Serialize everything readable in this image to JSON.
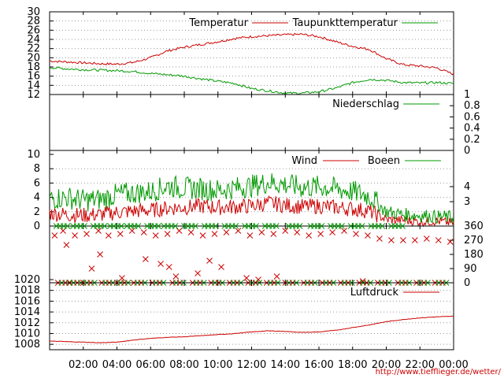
{
  "colors": {
    "temperature": "#cc0000",
    "dewpoint": "#009900",
    "precipitation": "#009900",
    "wind": "#cc0000",
    "gusts": "#009900",
    "direction_wind": "#cc0000",
    "direction_gusts": "#009900",
    "pressure": "#cc0000",
    "url": "#cc0000",
    "grid": "#999999"
  },
  "x_axis": {
    "ticks": [
      "02:00",
      "04:00",
      "06:00",
      "08:00",
      "10:00",
      "12:00",
      "14:00",
      "16:00",
      "18:00",
      "20:00",
      "22:00",
      "00:00"
    ],
    "tick_hours": [
      2,
      4,
      6,
      8,
      10,
      12,
      14,
      16,
      18,
      20,
      22,
      24
    ],
    "range_hours": [
      0,
      24
    ]
  },
  "footer_url": "http://www.tiefflieger.de/wetter/",
  "chart_data": [
    {
      "id": "temperature",
      "type": "line",
      "ylim": [
        12,
        30
      ],
      "yticks": [
        "12",
        "14",
        "16",
        "18",
        "20",
        "22",
        "24",
        "26",
        "28",
        "30"
      ],
      "ytick_values": [
        12,
        14,
        16,
        18,
        20,
        22,
        24,
        26,
        28,
        30
      ],
      "grid": true,
      "legend_position": "top-right",
      "series": [
        {
          "name": "Temperatur",
          "x": [
            0,
            1,
            2,
            3,
            4,
            5,
            6,
            7,
            8,
            9,
            10,
            11,
            12,
            13,
            14,
            15,
            16,
            17,
            18,
            19,
            20,
            21,
            22,
            23,
            24
          ],
          "values": [
            19.3,
            19.1,
            18.9,
            18.7,
            18.6,
            19.0,
            20.0,
            21.5,
            22.3,
            22.9,
            23.5,
            24.2,
            24.6,
            24.8,
            25.0,
            25.1,
            24.6,
            23.5,
            22.5,
            21.8,
            19.8,
            18.5,
            18.2,
            17.8,
            16.4
          ]
        },
        {
          "name": "Taupunkttemperatur",
          "x": [
            0,
            1,
            2,
            3,
            4,
            5,
            6,
            7,
            8,
            9,
            10,
            11,
            12,
            13,
            14,
            15,
            16,
            17,
            18,
            19,
            20,
            21,
            22,
            23,
            24
          ],
          "values": [
            17.9,
            17.6,
            17.4,
            17.3,
            17.2,
            17.0,
            16.6,
            16.3,
            16.0,
            15.4,
            14.9,
            14.4,
            13.3,
            12.8,
            12.3,
            12.3,
            12.6,
            13.4,
            14.6,
            15.3,
            15.1,
            14.6,
            14.5,
            14.6,
            14.4
          ]
        }
      ]
    },
    {
      "id": "precipitation",
      "type": "line",
      "ylim": [
        0,
        1
      ],
      "yticks": [
        "0",
        "0.2",
        "0.4",
        "0.6",
        "0.8",
        "1"
      ],
      "ytick_values": [
        0,
        0.2,
        0.4,
        0.6,
        0.8,
        1
      ],
      "yaxis_side": "right",
      "legend_position": "top-right",
      "series": [
        {
          "name": "Niederschlag",
          "x": [
            0,
            24
          ],
          "values": [
            0,
            0
          ]
        }
      ]
    },
    {
      "id": "wind",
      "type": "line",
      "ylim": [
        0,
        10
      ],
      "yticks": [
        "0",
        "2",
        "4",
        "6",
        "8",
        "10"
      ],
      "ytick_values": [
        0,
        2,
        4,
        6,
        8,
        10
      ],
      "right_ticks": [
        "3",
        "4"
      ],
      "right_tick_values": [
        3.4,
        5.5
      ],
      "grid": true,
      "legend_position": "top-right",
      "series": [
        {
          "name": "Wind",
          "x": [
            0,
            1,
            2,
            3,
            4,
            5,
            6,
            7,
            8,
            9,
            10,
            11,
            12,
            13,
            14,
            15,
            16,
            17,
            18,
            19,
            20,
            21,
            22,
            23,
            24
          ],
          "values": [
            1.8,
            1.6,
            1.5,
            1.6,
            1.9,
            2.1,
            2.2,
            2.5,
            2.6,
            2.8,
            2.6,
            2.7,
            2.8,
            3.2,
            2.9,
            2.7,
            2.8,
            2.6,
            2.4,
            2.1,
            0.9,
            0.8,
            0.6,
            0.7,
            0.4
          ]
        },
        {
          "name": "Boeen",
          "x": [
            0,
            1,
            2,
            3,
            4,
            5,
            6,
            7,
            8,
            9,
            10,
            11,
            12,
            13,
            14,
            15,
            16,
            17,
            18,
            19,
            20,
            21,
            22,
            23,
            24
          ],
          "values": [
            3.8,
            4.0,
            3.6,
            3.7,
            4.4,
            4.6,
            4.8,
            5.6,
            5.3,
            5.2,
            5.0,
            5.3,
            5.6,
            6.1,
            5.8,
            5.4,
            5.5,
            5.2,
            4.8,
            4.2,
            2.0,
            1.6,
            1.5,
            1.3,
            1.2
          ]
        }
      ]
    },
    {
      "id": "wind_direction",
      "type": "scatter",
      "ylim": [
        0,
        360
      ],
      "yticks": [
        "0",
        "90",
        "180",
        "270",
        "360"
      ],
      "ytick_values": [
        0,
        90,
        180,
        270,
        360
      ],
      "yaxis_side": "right",
      "marker": "x",
      "series": [
        {
          "x": [
            0.3,
            0.8,
            1.5,
            2.2,
            2.9,
            3.5,
            4.2,
            4.9,
            5.6,
            6.3,
            7.0,
            7.7,
            8.4,
            9.1,
            9.8,
            10.5,
            11.2,
            11.9,
            12.6,
            13.3,
            14.0,
            14.7,
            15.4,
            16.1,
            16.8,
            17.5,
            18.2,
            18.9,
            19.6,
            20.3,
            21.0,
            21.7,
            22.4,
            23.1,
            23.8
          ],
          "values": [
            300,
            330,
            300,
            310,
            330,
            300,
            310,
            330,
            320,
            300,
            310,
            330,
            320,
            300,
            310,
            320,
            330,
            300,
            320,
            310,
            330,
            320,
            300,
            310,
            320,
            330,
            310,
            300,
            280,
            270,
            270,
            270,
            280,
            270,
            260
          ]
        },
        {
          "x": [
            1.0,
            2.5,
            3.0,
            4.3,
            5.7,
            6.6,
            7.1,
            7.5,
            8.8,
            9.5,
            10.2,
            11.7,
            12.4,
            13.5,
            18.6
          ],
          "values": [
            240,
            90,
            180,
            30,
            150,
            120,
            100,
            40,
            60,
            140,
            100,
            30,
            20,
            40,
            10
          ]
        },
        {
          "x": [
            0.5,
            1.2,
            2.0,
            3.1,
            4.0,
            5.0,
            6.1,
            7.3,
            8.5,
            9.6,
            10.7,
            11.8,
            12.9,
            14.0,
            15.1,
            16.2,
            17.3,
            18.4,
            19.5,
            20.7,
            21.8,
            22.9
          ],
          "values": [
            0,
            0,
            0,
            0,
            0,
            0,
            0,
            0,
            0,
            0,
            0,
            0,
            0,
            0,
            0,
            0,
            0,
            0,
            0,
            0,
            0,
            0
          ]
        },
        {
          "x": [
            0.4,
            1.4,
            2.6,
            3.6,
            4.6,
            5.8,
            6.8,
            8.0,
            9.2,
            10.4,
            11.6,
            12.8,
            14.2,
            15.5,
            16.7,
            17.9,
            19.1,
            20.3
          ],
          "values": [
            360,
            360,
            360,
            360,
            360,
            360,
            360,
            360,
            360,
            360,
            360,
            360,
            360,
            360,
            360,
            360,
            360,
            360
          ]
        }
      ]
    },
    {
      "id": "pressure",
      "type": "line",
      "ylim": [
        1007,
        1020
      ],
      "yticks": [
        "1008",
        "1010",
        "1012",
        "1014",
        "1016",
        "1018",
        "1020"
      ],
      "ytick_values": [
        1008,
        1010,
        1012,
        1014,
        1016,
        1018,
        1020
      ],
      "grid": true,
      "legend_position": "top-right",
      "series": [
        {
          "name": "Luftdruck",
          "x": [
            0,
            1,
            2,
            3,
            4,
            5,
            6,
            7,
            8,
            9,
            10,
            11,
            12,
            13,
            14,
            15,
            16,
            17,
            18,
            19,
            20,
            21,
            22,
            23,
            24
          ],
          "values": [
            1008.6,
            1008.5,
            1008.4,
            1008.3,
            1008.4,
            1008.8,
            1009.1,
            1009.3,
            1009.4,
            1009.6,
            1009.8,
            1010.0,
            1010.3,
            1010.5,
            1010.4,
            1010.2,
            1010.3,
            1010.6,
            1011.1,
            1011.6,
            1012.2,
            1012.6,
            1012.9,
            1013.1,
            1013.2
          ]
        }
      ]
    }
  ]
}
